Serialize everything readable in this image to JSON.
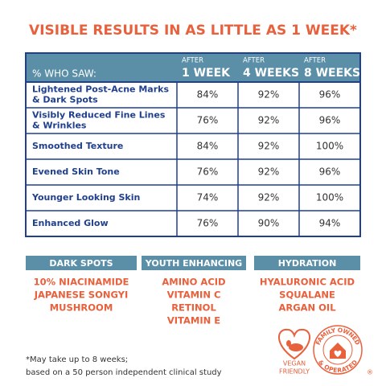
{
  "title": "VISIBLE RESULTS IN AS LITTLE AS 1 WEEK*",
  "table": {
    "header": "% WHO SAW:",
    "columns": [
      {
        "pre": "AFTER",
        "label": "1 WEEK"
      },
      {
        "pre": "AFTER",
        "label": "4 WEEKS"
      },
      {
        "pre": "AFTER",
        "label": "8 WEEKS"
      }
    ],
    "rows": [
      {
        "label": [
          "Lightened Post-Acne Marks",
          "& Dark Spots"
        ],
        "values": [
          "84%",
          "92%",
          "96%"
        ]
      },
      {
        "label": [
          "Visibly Reduced Fine Lines",
          "& Wrinkles"
        ],
        "values": [
          "76%",
          "92%",
          "96%"
        ]
      },
      {
        "label": [
          "Smoothed Texture"
        ],
        "values": [
          "84%",
          "92%",
          "100%"
        ]
      },
      {
        "label": [
          "Evened Skin Tone"
        ],
        "values": [
          "76%",
          "92%",
          "96%"
        ]
      },
      {
        "label": [
          "Younger Looking Skin"
        ],
        "values": [
          "74%",
          "92%",
          "100%"
        ]
      },
      {
        "label": [
          "Enhanced Glow"
        ],
        "values": [
          "76%",
          "90%",
          "94%"
        ]
      }
    ]
  },
  "categories": [
    {
      "title": "DARK SPOTS",
      "items": [
        "10% NIACINAMIDE",
        "JAPANESE SONGYI",
        "MUSHROOM"
      ]
    },
    {
      "title": "YOUTH ENHANCING",
      "items": [
        "AMINO ACID",
        "VITAMIN C",
        "RETINOL",
        "VITAMIN E"
      ]
    },
    {
      "title": "HYDRATION",
      "items": [
        "HYALURONIC ACID",
        "SQUALANE",
        "ARGAN OIL"
      ]
    }
  ],
  "footnote": [
    "*May take up to 8 weeks;",
    "based on a 50 person independent clinical study"
  ],
  "badges": {
    "vegan": [
      "VEGAN",
      "FRIENDLY"
    ],
    "family": [
      "FAMILY OWNED",
      "& OPERATED"
    ],
    "registered": "®"
  }
}
